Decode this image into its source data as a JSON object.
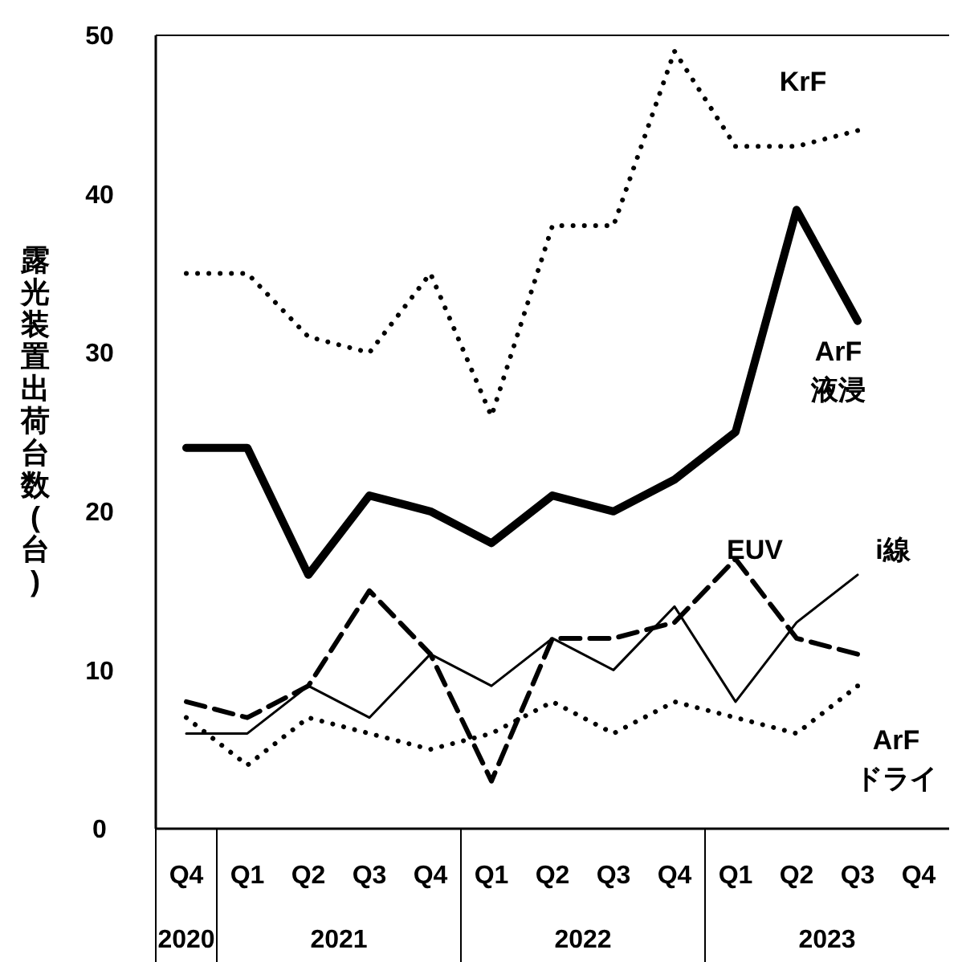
{
  "chart_data": {
    "type": "line",
    "ylabel": "露光装置出荷台数(台)",
    "categories": [
      "Q4",
      "Q1",
      "Q2",
      "Q3",
      "Q4",
      "Q1",
      "Q2",
      "Q3",
      "Q4",
      "Q1",
      "Q2",
      "Q3",
      "Q4"
    ],
    "annotations": [
      "2020",
      "2021",
      "2022",
      "2023"
    ],
    "ylim": [
      0,
      50
    ],
    "yticks": [
      0,
      10,
      20,
      30,
      40,
      50
    ],
    "grid": false,
    "series": [
      {
        "name": "KrF",
        "color": "#000000",
        "line_style": "dotted",
        "values": [
          35,
          35,
          31,
          30,
          35,
          26,
          38,
          38,
          49,
          43,
          43,
          44,
          null
        ]
      },
      {
        "name": "ArF 液浸",
        "color": "#000000",
        "line_style": "solid",
        "values": [
          24,
          24,
          16,
          21,
          20,
          18,
          21,
          20,
          22,
          25,
          39,
          32,
          null
        ]
      },
      {
        "name": "EUV",
        "color": "#000000",
        "line_style": "dashed",
        "values": [
          8,
          7,
          9,
          15,
          11,
          3,
          12,
          12,
          13,
          17,
          12,
          11,
          null
        ]
      },
      {
        "name": "i線",
        "color": "#000000",
        "line_style": "solid",
        "values": [
          6,
          6,
          9,
          7,
          11,
          9,
          12,
          10,
          14,
          8,
          13,
          16,
          null
        ]
      },
      {
        "name": "ArF ドライ",
        "color": "#000000",
        "line_style": "dotted",
        "values": [
          7,
          4,
          7,
          6,
          5,
          6,
          8,
          6,
          8,
          7,
          6,
          9,
          null
        ]
      }
    ]
  }
}
